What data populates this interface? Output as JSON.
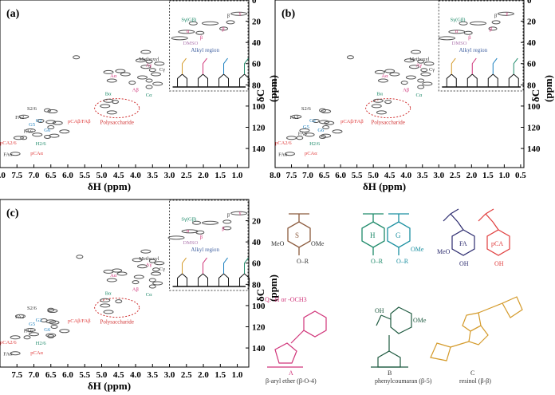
{
  "chart_data": [
    {
      "type": "scatter",
      "panel": "(a)",
      "xlabel": "δH (ppm)",
      "ylabel": "δC (ppm)",
      "xlim": [
        8.0,
        0.66
      ],
      "ylim": [
        0,
        158
      ],
      "xticks": [
        "8.0",
        "7.5",
        "7.0",
        "6.5",
        "6.0",
        "5.5",
        "5.0",
        "4.5",
        "4.0",
        "3.5",
        "3.0",
        "2.5",
        "2.0",
        "1.5",
        "1.0"
      ],
      "yticks": [
        "0",
        "20",
        "40",
        "60",
        "80",
        "100",
        "120",
        "140"
      ],
      "inset_label": "Alkyl region",
      "ellipse_label": "Polysaccharide",
      "annotations": [
        {
          "t": "Methoxyl",
          "h": 3.9,
          "c": 57,
          "col": "#333"
        },
        {
          "t": "Aγ",
          "h": 3.7,
          "c": 60,
          "col": "#d0357a"
        },
        {
          "t": "Aα",
          "h": 4.75,
          "c": 73,
          "col": "#d0357a"
        },
        {
          "t": "Aβ",
          "h": 4.1,
          "c": 86,
          "col": "#d0357a"
        },
        {
          "t": "Cγ",
          "h": 3.3,
          "c": 67,
          "col": "#333"
        },
        {
          "t": "Cα",
          "h": 3.7,
          "c": 91,
          "col": "#1e8a6a"
        },
        {
          "t": "Bα",
          "h": 4.9,
          "c": 90,
          "col": "#1e8a6a"
        },
        {
          "t": "S2/6",
          "h": 7.2,
          "c": 104,
          "col": "#333"
        },
        {
          "t": "FA2",
          "h": 7.55,
          "c": 112,
          "col": "#333"
        },
        {
          "t": "G2",
          "h": 6.95,
          "c": 115,
          "col": "#1a7fbf"
        },
        {
          "t": "G5",
          "h": 7.15,
          "c": 119,
          "col": "#1a7fbf"
        },
        {
          "t": "G6",
          "h": 6.7,
          "c": 124,
          "col": "#1a7fbf"
        },
        {
          "t": "FA6",
          "h": 7.3,
          "c": 123,
          "col": "#333"
        },
        {
          "t": "H2/6",
          "h": 6.95,
          "c": 137,
          "col": "#1e8a6a"
        },
        {
          "t": "pCA2/6",
          "h": 8.0,
          "c": 136,
          "col": "#e03c3c"
        },
        {
          "t": "pCAβ/FAβ",
          "h": 6.0,
          "c": 116,
          "col": "#e03c3c"
        },
        {
          "t": "FAα",
          "h": 7.9,
          "c": 147,
          "col": "#333"
        },
        {
          "t": "pCAα",
          "h": 7.1,
          "c": 146,
          "col": "#e03c3c"
        },
        {
          "t": "Sγ(Gβ)",
          "h": 2.65,
          "c": 20,
          "col": "#1e8a6a"
        },
        {
          "t": "α",
          "h": 2.5,
          "c": 31,
          "col": "#d0357a"
        },
        {
          "t": "β",
          "h": 2.1,
          "c": 37,
          "col": "#d0357a"
        },
        {
          "t": "DMSO",
          "h": 2.6,
          "c": 43,
          "col": "#b07ab0"
        },
        {
          "t": "β",
          "h": 1.3,
          "c": 16,
          "col": "#333"
        },
        {
          "t": "γ",
          "h": 0.95,
          "c": 14,
          "col": "#d0357a"
        },
        {
          "t": "β",
          "h": 1.45,
          "c": 29,
          "col": "#d0357a"
        }
      ],
      "peaks": [
        [
          5.75,
          54
        ],
        [
          3.7,
          49
        ],
        [
          3.85,
          57
        ],
        [
          3.6,
          58
        ],
        [
          3.3,
          60
        ],
        [
          3.7,
          63
        ],
        [
          3.5,
          66
        ],
        [
          3.4,
          70
        ],
        [
          3.8,
          73
        ],
        [
          3.6,
          76
        ],
        [
          3.35,
          79
        ],
        [
          4.3,
          70
        ],
        [
          4.1,
          78
        ],
        [
          4.8,
          68
        ],
        [
          4.45,
          67
        ],
        [
          3.6,
          82
        ],
        [
          4.7,
          76
        ],
        [
          4.8,
          95
        ],
        [
          4.6,
          96
        ],
        [
          4.9,
          100
        ],
        [
          4.7,
          106
        ],
        [
          6.6,
          104
        ],
        [
          6.45,
          105
        ],
        [
          7.3,
          110
        ],
        [
          6.8,
          114
        ],
        [
          6.5,
          115
        ],
        [
          6.3,
          116
        ],
        [
          6.5,
          120
        ],
        [
          7.1,
          123
        ],
        [
          6.9,
          127
        ],
        [
          6.6,
          129
        ],
        [
          6.1,
          124
        ],
        [
          7.45,
          130
        ],
        [
          7.3,
          130
        ],
        [
          7.55,
          145
        ],
        [
          6.4,
          128
        ],
        [
          2.3,
          22
        ],
        [
          1.8,
          22
        ],
        [
          1.2,
          21
        ],
        [
          2.5,
          30
        ],
        [
          2.1,
          31
        ],
        [
          2.7,
          36
        ],
        [
          1.4,
          27
        ],
        [
          0.95,
          13
        ]
      ]
    },
    {
      "type": "scatter",
      "panel": "(b)",
      "xlabel": "δH (ppm)",
      "ylabel": "δC (ppm)",
      "xlim": [
        8.0,
        0.4
      ],
      "ylim": [
        0,
        158
      ],
      "xticks": [
        "8.0",
        "7.5",
        "7.0",
        "6.5",
        "6.0",
        "5.5",
        "5.0",
        "4.5",
        "4.0",
        "3.5",
        "3.0",
        "2.5",
        "2.0",
        "1.5",
        "1.0",
        "0.5"
      ],
      "yticks": [
        "0",
        "20",
        "40",
        "60",
        "80",
        "100",
        "120",
        "140"
      ],
      "inset_label": "Alkyl region",
      "ellipse_label": "Polysaccharide"
    },
    {
      "type": "scatter",
      "panel": "(c)",
      "xlabel": "δH (ppm)",
      "ylabel": "δC (ppm)",
      "xlim": [
        8.0,
        0.66
      ],
      "ylim": [
        0,
        158
      ],
      "xticks": [
        "7.5",
        "7.0",
        "6.5",
        "6.0",
        "5.5",
        "5.0",
        "4.5",
        "4.0",
        "3.5",
        "3.0",
        "2.5",
        "2.0",
        "1.5",
        "1.0"
      ],
      "yticks": [
        "20",
        "40",
        "60",
        "80",
        "100",
        "120",
        "140"
      ],
      "inset_label": "Alkyl region",
      "ellipse_label": "Polysaccharide"
    }
  ],
  "structures": {
    "S": "S",
    "H": "H",
    "G": "G",
    "FA": "FA",
    "pCA": "pCA",
    "OMe": "OMe",
    "MeO": "MeO",
    "OR": "O–R",
    "OH": "OH",
    "note": "Q: -H or -OCH3",
    "A_letter": "A",
    "A_name": "β-aryl ether (β-O-4)",
    "B_letter": "B",
    "B_name": "phenylcoumaran (β-5)",
    "C_letter": "C",
    "C_name": "resinol (β-β)"
  }
}
